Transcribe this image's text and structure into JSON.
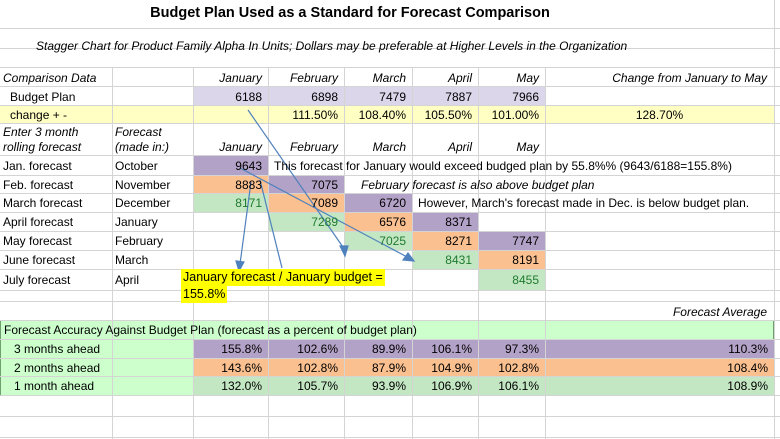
{
  "title": "Budget Plan Used as a Standard for Forecast Comparison",
  "subtitle": "Stagger Chart  for Product Family Alpha In Units; Dollars may be preferable at Higher Levels in the Organization",
  "comparison": {
    "label": "Comparison Data",
    "months": [
      "January",
      "February",
      "March",
      "April",
      "May"
    ],
    "change_header": "Change from January to May",
    "budget_label": "Budget Plan",
    "budget_values": [
      "6188",
      "6898",
      "7479",
      "7887",
      "7966"
    ],
    "change_label": "change + -",
    "change_values": [
      "",
      "111.50%",
      "108.40%",
      "105.50%",
      "101.00%"
    ],
    "change_total": "128.70%"
  },
  "forecast_header": {
    "col_a_line1": "Enter 3 month",
    "col_a_line2": "rolling forecast",
    "col_b_line1": "Forecast",
    "col_b_line2": "(made in:)",
    "months": [
      "January",
      "February",
      "March",
      "April",
      "May"
    ]
  },
  "forecast_rows": [
    {
      "label": "Jan. forecast",
      "made": "October",
      "values": [
        "9643",
        "",
        "",
        "",
        ""
      ]
    },
    {
      "label": "Feb. forecast",
      "made": "November",
      "values": [
        "8883",
        "7075",
        "",
        "",
        ""
      ]
    },
    {
      "label": "March forecast",
      "made": "December",
      "values": [
        "8171",
        "7089",
        "6720",
        "",
        ""
      ]
    },
    {
      "label": "April forecast",
      "made": "January",
      "values": [
        "",
        "7289",
        "6576",
        "8371",
        ""
      ]
    },
    {
      "label": "May forecast",
      "made": "February",
      "values": [
        "",
        "",
        "7025",
        "8271",
        "7747"
      ]
    },
    {
      "label": "June forecast",
      "made": "March",
      "values": [
        "",
        "",
        "",
        "8431",
        "8191"
      ]
    },
    {
      "label": "July forecast",
      "made": "April",
      "values": [
        "",
        "",
        "",
        "",
        "8455"
      ]
    }
  ],
  "notes": {
    "jan": "This forecast for January would exceed budged plan by 55.8%% (9643/6188=155.8%)",
    "feb": "February forecast is also above budget plan",
    "march": "However, March's forecast made in Dec. is below budget plan.",
    "highlight_line1": "January forecast / January budget =",
    "highlight_line2": "155.8%"
  },
  "forecast_average_label": "Forecast Average",
  "accuracy": {
    "title": "Forecast Accuracy Against Budget Plan (forecast as a percent of budget plan)",
    "rows": [
      {
        "label": "3 months ahead",
        "values": [
          "155.8%",
          "102.6%",
          "89.9%",
          "106.1%",
          "97.3%"
        ],
        "average": "110.3%"
      },
      {
        "label": "2 months ahead",
        "values": [
          "143.6%",
          "102.8%",
          "87.9%",
          "104.9%",
          "102.8%"
        ],
        "average": "108.4%"
      },
      {
        "label": "1 month ahead",
        "values": [
          "132.0%",
          "105.7%",
          "93.9%",
          "106.9%",
          "106.1%"
        ],
        "average": "108.9%"
      }
    ]
  },
  "colors": {
    "purple": "#b3a2c7",
    "orange": "#fac090",
    "green": "#c3e7c3",
    "yellow": "#ffffc4",
    "lavender": "#dcd6ea",
    "accuracy_bg": "#ccffcc",
    "highlight": "#ffff00",
    "grid": "#d4d4d4",
    "arrow": "#4f81bd"
  }
}
